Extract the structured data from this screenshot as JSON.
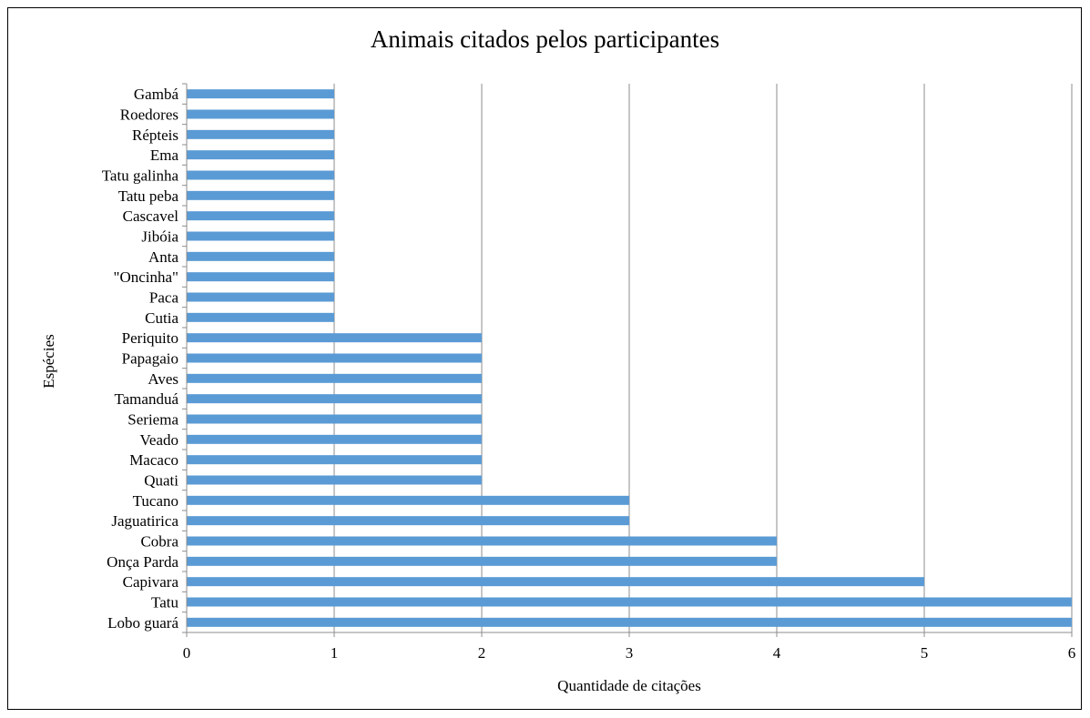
{
  "chart_data": {
    "type": "bar",
    "orientation": "horizontal",
    "title": "Animais citados pelos participantes",
    "xlabel": "Quantidade de citações",
    "ylabel": "Espécies",
    "xlim": [
      0,
      6
    ],
    "x_ticks": [
      "0",
      "1",
      "2",
      "3",
      "4",
      "5",
      "6"
    ],
    "grid": "vertical",
    "legend": "none",
    "bar_color": "#5B9BD5",
    "categories": [
      "Gambá",
      "Roedores",
      "Répteis",
      "Ema",
      "Tatu galinha",
      "Tatu peba",
      "Cascavel",
      "Jibóia",
      "Anta",
      "\"Oncinha\"",
      "Paca",
      "Cutia",
      "Periquito",
      "Papagaio",
      "Aves",
      "Tamanduá",
      "Seriema",
      "Veado",
      "Macaco",
      "Quati",
      "Tucano",
      "Jaguatirica",
      "Cobra",
      "Onça Parda",
      "Capivara",
      "Tatu",
      "Lobo guará"
    ],
    "values": [
      1,
      1,
      1,
      1,
      1,
      1,
      1,
      1,
      1,
      1,
      1,
      1,
      2,
      2,
      2,
      2,
      2,
      2,
      2,
      2,
      3,
      3,
      4,
      4,
      5,
      6,
      6
    ]
  }
}
